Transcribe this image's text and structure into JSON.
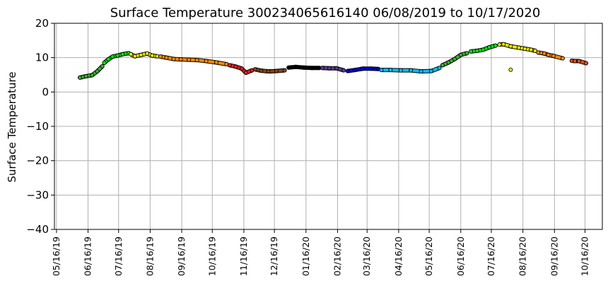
{
  "chart_data": {
    "type": "scatter",
    "title": "Surface Temperature 300234065616140  06/08/2019 to 10/17/2020",
    "ylabel": "Surface Temperature",
    "xlabel": "",
    "xlim": [
      "2019-05-14",
      "2020-11-02"
    ],
    "ylim": [
      -40,
      20
    ],
    "yticks": [
      20,
      10,
      0,
      -10,
      -20,
      -30,
      -40
    ],
    "xticks": [
      "05/16/19",
      "06/16/19",
      "07/16/19",
      "08/16/19",
      "09/16/19",
      "10/16/19",
      "11/16/19",
      "12/16/19",
      "01/16/20",
      "02/16/20",
      "03/16/20",
      "04/16/20",
      "05/16/20",
      "06/16/20",
      "07/16/20",
      "08/16/20",
      "09/16/20",
      "10/16/20"
    ],
    "grid": true,
    "series": [
      {
        "color": "#3cb034",
        "points": [
          [
            "2019-06-08",
            4.2
          ],
          [
            "2019-06-14",
            4.6
          ],
          [
            "2019-06-20",
            4.9
          ],
          [
            "2019-06-25",
            6.0
          ],
          [
            "2019-06-30",
            7.5
          ]
        ]
      },
      {
        "color": "#00ee00",
        "points": [
          [
            "2019-07-02",
            8.5
          ],
          [
            "2019-07-06",
            9.5
          ],
          [
            "2019-07-10",
            10.3
          ],
          [
            "2019-07-15",
            10.6
          ],
          [
            "2019-07-20",
            11.0
          ],
          [
            "2019-07-26",
            11.3
          ]
        ]
      },
      {
        "color": "#f0f000",
        "points": [
          [
            "2019-07-28",
            11.0
          ],
          [
            "2019-08-01",
            10.4
          ],
          [
            "2019-08-07",
            10.8
          ],
          [
            "2019-08-13",
            11.2
          ],
          [
            "2019-08-18",
            10.6
          ],
          [
            "2019-08-23",
            10.4
          ]
        ]
      },
      {
        "color": "#ff8c00",
        "points": [
          [
            "2019-08-26",
            10.3
          ],
          [
            "2019-09-01",
            10.0
          ],
          [
            "2019-09-08",
            9.6
          ],
          [
            "2019-09-15",
            9.5
          ],
          [
            "2019-09-23",
            9.4
          ],
          [
            "2019-10-01",
            9.3
          ],
          [
            "2019-10-10",
            9.0
          ],
          [
            "2019-10-20",
            8.6
          ],
          [
            "2019-10-30",
            8.1
          ]
        ]
      },
      {
        "color": "#e52020",
        "points": [
          [
            "2019-11-02",
            7.8
          ],
          [
            "2019-11-08",
            7.4
          ],
          [
            "2019-11-14",
            6.8
          ],
          [
            "2019-11-18",
            5.6
          ],
          [
            "2019-11-24",
            6.3
          ]
        ]
      },
      {
        "color": "#8b4513",
        "points": [
          [
            "2019-11-27",
            6.6
          ],
          [
            "2019-12-03",
            6.2
          ],
          [
            "2019-12-10",
            6.0
          ],
          [
            "2019-12-18",
            6.1
          ],
          [
            "2019-12-26",
            6.3
          ]
        ]
      },
      {
        "color": "#000000",
        "points": [
          [
            "2019-12-30",
            7.1
          ],
          [
            "2020-01-06",
            7.3
          ],
          [
            "2020-01-14",
            7.1
          ],
          [
            "2020-01-22",
            7.0
          ],
          [
            "2020-01-29",
            7.0
          ]
        ]
      },
      {
        "color": "#5a3a8c",
        "points": [
          [
            "2020-02-01",
            7.0
          ],
          [
            "2020-02-08",
            6.9
          ],
          [
            "2020-02-15",
            6.9
          ],
          [
            "2020-02-22",
            6.3
          ]
        ]
      },
      {
        "color": "#0000dd",
        "points": [
          [
            "2020-02-26",
            6.1
          ],
          [
            "2020-03-04",
            6.4
          ],
          [
            "2020-03-12",
            6.8
          ],
          [
            "2020-03-20",
            6.8
          ],
          [
            "2020-03-27",
            6.7
          ]
        ]
      },
      {
        "color": "#00bfff",
        "points": [
          [
            "2020-03-30",
            6.4
          ],
          [
            "2020-04-08",
            6.4
          ],
          [
            "2020-04-18",
            6.3
          ],
          [
            "2020-04-28",
            6.3
          ],
          [
            "2020-05-08",
            6.0
          ],
          [
            "2020-05-18",
            6.1
          ],
          [
            "2020-05-26",
            7.0
          ]
        ]
      },
      {
        "color": "#3cb034",
        "points": [
          [
            "2020-05-29",
            7.8
          ],
          [
            "2020-06-04",
            8.6
          ],
          [
            "2020-06-10",
            9.6
          ],
          [
            "2020-06-16",
            10.8
          ],
          [
            "2020-06-22",
            11.3
          ]
        ]
      },
      {
        "color": "#00ee00",
        "points": [
          [
            "2020-06-26",
            11.8
          ],
          [
            "2020-07-02",
            12.0
          ],
          [
            "2020-07-08",
            12.3
          ],
          [
            "2020-07-14",
            13.0
          ],
          [
            "2020-07-20",
            13.5
          ]
        ]
      },
      {
        "color": "#f0f000",
        "points": [
          [
            "2020-07-24",
            13.8
          ],
          [
            "2020-07-28",
            13.9
          ],
          [
            "2020-08-04",
            13.3
          ],
          [
            "2020-08-12",
            12.9
          ],
          [
            "2020-08-18",
            12.6
          ],
          [
            "2020-08-24",
            12.3
          ],
          [
            "2020-08-28",
            12.0
          ],
          [
            "2020-08-04",
            6.5
          ]
        ]
      },
      {
        "color": "#ff8c00",
        "points": [
          [
            "2020-08-31",
            11.5
          ],
          [
            "2020-09-06",
            11.2
          ],
          [
            "2020-09-10",
            10.8
          ],
          [
            "2020-09-15",
            10.5
          ],
          [
            "2020-09-24",
            9.8
          ]
        ]
      },
      {
        "color": "#e0501a",
        "points": [
          [
            "2020-10-03",
            9.1
          ],
          [
            "2020-10-06",
            9.0
          ],
          [
            "2020-10-10",
            9.0
          ],
          [
            "2020-10-17",
            8.4
          ]
        ]
      }
    ]
  }
}
